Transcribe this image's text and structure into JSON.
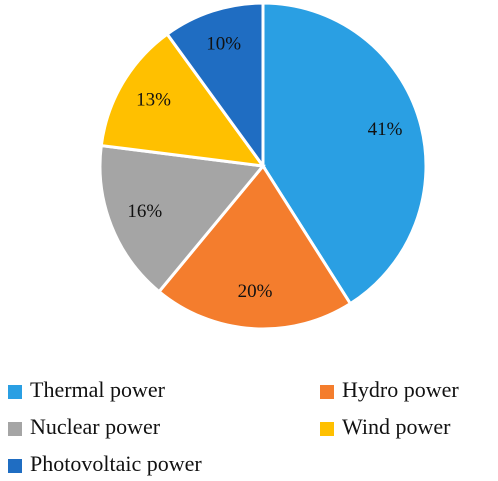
{
  "chart_data": {
    "type": "pie",
    "categories": [
      "Thermal power",
      "Hydro power",
      "Nuclear power",
      "Wind power",
      "Photovoltaic power"
    ],
    "values": [
      41,
      20,
      16,
      13,
      10
    ],
    "value_labels": [
      "41%",
      "20%",
      "16%",
      "13%",
      "10%"
    ],
    "colors": [
      "#2a9fe3",
      "#f47d2d",
      "#a5a5a5",
      "#ffc000",
      "#1f6dc2"
    ]
  }
}
